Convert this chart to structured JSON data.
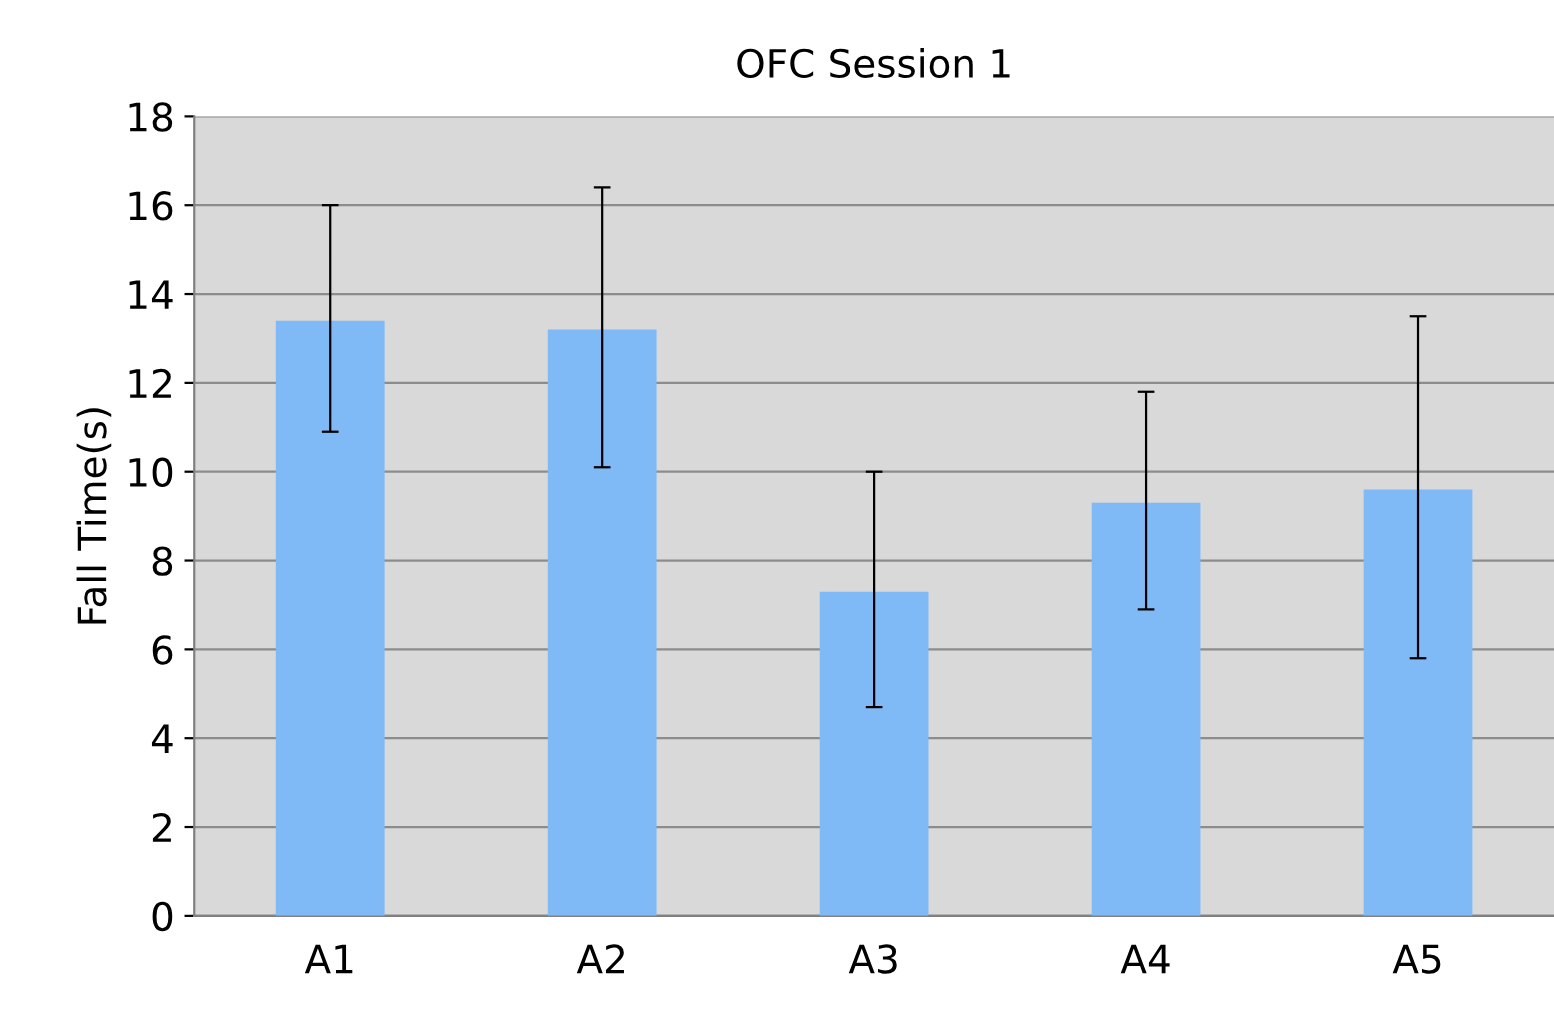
{
  "chart_data": {
    "type": "bar",
    "title": "OFC Session 1",
    "ylabel": "Fall Time(s)",
    "categories": [
      "A1",
      "A2",
      "A3",
      "A4",
      "A5"
    ],
    "values": [
      13.4,
      13.2,
      7.3,
      9.3,
      9.6
    ],
    "errors": [
      [
        10.9,
        16.0
      ],
      [
        10.1,
        16.4
      ],
      [
        4.7,
        10.0
      ],
      [
        6.9,
        11.8
      ],
      [
        5.8,
        13.5
      ]
    ],
    "color": "#7fbaf7",
    "ylim": [
      0,
      18
    ],
    "yticks": [
      0,
      2,
      4,
      6,
      8,
      10,
      12,
      14,
      16,
      18
    ],
    "grid": "y",
    "legend": false
  }
}
